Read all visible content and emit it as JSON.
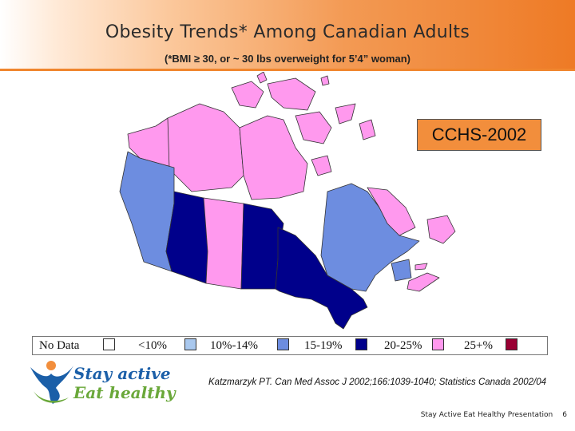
{
  "title": "Obesity Trends* Among Canadian Adults",
  "subtitle": "(*BMI ≥ 30, or ~ 30 lbs overweight for 5’4” woman)",
  "source_label": "CCHS-2002",
  "legend": [
    {
      "label": "No Data",
      "color": "#ffffff"
    },
    {
      "label": "<10%",
      "color": "#a9c8ee"
    },
    {
      "label": "10%-14%",
      "color": "#6d8de0"
    },
    {
      "label": "15-19%",
      "color": "#00008b"
    },
    {
      "label": "20-25%",
      "color": "#ff99ee"
    },
    {
      "label": "25+%",
      "color": "#990033"
    }
  ],
  "logo": {
    "line1": "Stay active",
    "line2": "Eat healthy"
  },
  "citation": "Katzmarzyk PT. Can Med Assoc J 2002;166:1039-1040; Statistics Canada 2002/04",
  "footer": {
    "text": "Stay Active Eat Healthy Presentation",
    "page": "6"
  },
  "colors": {
    "pink": "#ff99ee",
    "medium_blue": "#6d8de0",
    "dark_blue": "#00008b",
    "header_orange": "#ee7a25"
  }
}
